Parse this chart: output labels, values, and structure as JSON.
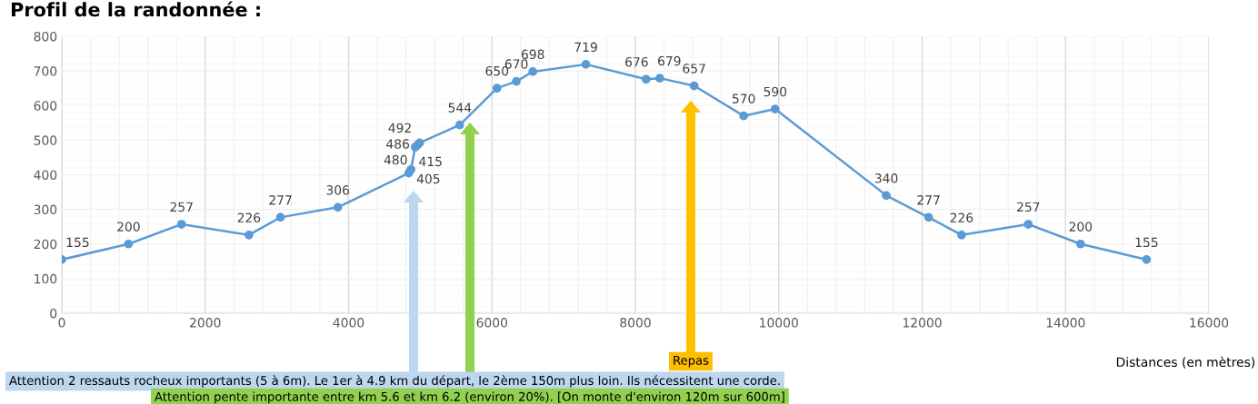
{
  "chart_data": {
    "type": "line",
    "title": "Profil de la randonnée :",
    "xlabel": "Distances (en mètres)",
    "x": [
      0,
      930,
      1670,
      2610,
      3050,
      3850,
      4840,
      4870,
      4930,
      4960,
      4990,
      5550,
      6070,
      6340,
      6570,
      7310,
      8150,
      8340,
      8820,
      9510,
      9950,
      11500,
      12090,
      12550,
      13480,
      14210,
      15130
    ],
    "series": [
      {
        "color": "#5b9bd5",
        "values": [
          155,
          200,
          257,
          226,
          277,
          306,
          405,
          415,
          480,
          486,
          492,
          544,
          650,
          670,
          698,
          719,
          676,
          679,
          657,
          570,
          590,
          340,
          277,
          226,
          257,
          200,
          155
        ]
      }
    ],
    "data_labels": true,
    "marker": "circle",
    "line_style": "solid",
    "grid": true,
    "xlim": [
      0,
      16000
    ],
    "xticks": [
      0,
      2000,
      4000,
      6000,
      8000,
      10000,
      12000,
      14000,
      16000
    ],
    "ylim": [
      0,
      800
    ],
    "yticks": [
      0,
      100,
      200,
      300,
      400,
      500,
      600,
      700,
      800
    ],
    "annotations": [
      "Repas",
      "Attention 2 ressauts rocheux importants (5 à 6m). Le 1er à 4.9 km du départ, le 2ème 150m plus loin. Ils nécessitent une corde.",
      "Attention pente importante entre km 5.6 et km 6.2 (environ 20%). [On monte d'environ 120m sur 600m]"
    ]
  }
}
